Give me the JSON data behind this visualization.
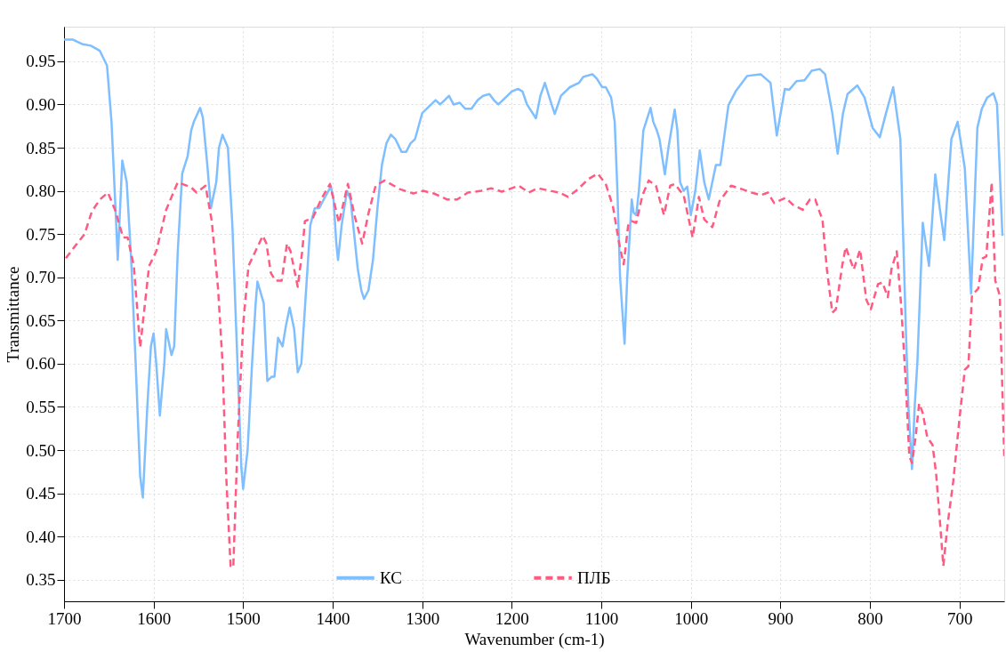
{
  "chart_data": {
    "type": "line",
    "xlabel": "Wavenumber (cm-1)",
    "ylabel": "Transmittance",
    "xlim": [
      1700,
      650
    ],
    "xticks": [
      1700,
      1600,
      1500,
      1400,
      1300,
      1200,
      1100,
      1000,
      900,
      800,
      700
    ],
    "ylim": [
      0.325,
      0.99
    ],
    "yticks": [
      0.35,
      {
        "value": 0.4,
        "label": "0.40"
      },
      0.45,
      {
        "value": 0.5,
        "label": "0.50"
      },
      0.55,
      {
        "value": 0.6,
        "label": "0.60"
      },
      0.65,
      {
        "value": 0.7,
        "label": "0.70"
      },
      0.75,
      {
        "value": 0.8,
        "label": "0.80"
      },
      0.85,
      {
        "value": 0.9,
        "label": "0.90"
      },
      0.95
    ],
    "grid": true,
    "legend": "bottom",
    "marker": "none",
    "series": [
      {
        "name": "КС",
        "color": "#7fbfff",
        "line_style": "solid",
        "x": [
          1700,
          1690,
          1680,
          1670,
          1660,
          1652,
          1647,
          1643,
          1640,
          1635,
          1630,
          1625,
          1620,
          1615,
          1612,
          1607,
          1603,
          1600,
          1597,
          1593,
          1588,
          1586,
          1580,
          1577,
          1573,
          1568,
          1562,
          1558,
          1555,
          1548,
          1545,
          1540,
          1536,
          1530,
          1527,
          1523,
          1517,
          1512,
          1507,
          1502,
          1500,
          1495,
          1490,
          1486,
          1484,
          1477,
          1473,
          1468,
          1465,
          1461,
          1456,
          1452,
          1448,
          1443,
          1439,
          1435,
          1430,
          1425,
          1420,
          1415,
          1410,
          1402,
          1399,
          1396,
          1394,
          1390,
          1384,
          1380,
          1376,
          1372,
          1368,
          1365,
          1360,
          1355,
          1350,
          1345,
          1340,
          1335,
          1330,
          1323,
          1318,
          1313,
          1308,
          1304,
          1300,
          1290,
          1285,
          1280,
          1275,
          1270,
          1265,
          1258,
          1252,
          1245,
          1238,
          1232,
          1225,
          1220,
          1215,
          1210,
          1200,
          1193,
          1188,
          1183,
          1173,
          1168,
          1163,
          1157,
          1152,
          1145,
          1135,
          1125,
          1120,
          1110,
          1105,
          1099,
          1095,
          1089,
          1085,
          1082,
          1079,
          1074,
          1071,
          1066,
          1064,
          1061,
          1058,
          1053,
          1045,
          1042,
          1038,
          1035,
          1029,
          1025,
          1018,
          1015,
          1012,
          1008,
          1004,
          1000,
          995,
          990,
          985,
          980,
          972,
          967,
          958,
          950,
          937,
          922,
          911,
          904,
          895,
          890,
          882,
          873,
          865,
          856,
          850,
          842,
          836,
          830,
          825,
          814,
          806,
          797,
          789,
          782,
          774,
          766,
          760,
          757,
          753,
          750,
          747,
          741,
          734,
          727,
          722,
          717,
          709,
          702,
          694,
          687,
          680,
          675,
          669,
          662,
          658,
          652
        ],
        "values": [
          0.975,
          0.975,
          0.97,
          0.968,
          0.962,
          0.945,
          0.88,
          0.79,
          0.72,
          0.835,
          0.81,
          0.72,
          0.6,
          0.47,
          0.445,
          0.55,
          0.62,
          0.635,
          0.6,
          0.54,
          0.6,
          0.64,
          0.61,
          0.62,
          0.73,
          0.82,
          0.84,
          0.87,
          0.88,
          0.896,
          0.885,
          0.83,
          0.78,
          0.81,
          0.85,
          0.865,
          0.85,
          0.76,
          0.62,
          0.48,
          0.455,
          0.5,
          0.6,
          0.67,
          0.695,
          0.67,
          0.58,
          0.585,
          0.585,
          0.63,
          0.62,
          0.645,
          0.665,
          0.64,
          0.59,
          0.6,
          0.68,
          0.76,
          0.78,
          0.78,
          0.79,
          0.805,
          0.79,
          0.74,
          0.72,
          0.76,
          0.8,
          0.79,
          0.75,
          0.71,
          0.685,
          0.675,
          0.685,
          0.72,
          0.78,
          0.83,
          0.855,
          0.865,
          0.86,
          0.845,
          0.845,
          0.855,
          0.86,
          0.875,
          0.89,
          0.9,
          0.905,
          0.9,
          0.905,
          0.91,
          0.9,
          0.902,
          0.895,
          0.895,
          0.905,
          0.91,
          0.912,
          0.905,
          0.9,
          0.905,
          0.915,
          0.918,
          0.915,
          0.9,
          0.884,
          0.91,
          0.925,
          0.905,
          0.889,
          0.91,
          0.92,
          0.925,
          0.932,
          0.935,
          0.93,
          0.92,
          0.92,
          0.908,
          0.88,
          0.8,
          0.7,
          0.623,
          0.7,
          0.79,
          0.775,
          0.772,
          0.8,
          0.87,
          0.896,
          0.88,
          0.87,
          0.86,
          0.819,
          0.85,
          0.894,
          0.87,
          0.81,
          0.8,
          0.805,
          0.772,
          0.8,
          0.847,
          0.81,
          0.79,
          0.83,
          0.83,
          0.899,
          0.915,
          0.933,
          0.935,
          0.925,
          0.864,
          0.918,
          0.917,
          0.927,
          0.928,
          0.939,
          0.941,
          0.935,
          0.89,
          0.843,
          0.89,
          0.912,
          0.922,
          0.908,
          0.873,
          0.862,
          0.89,
          0.92,
          0.86,
          0.645,
          0.55,
          0.478,
          0.55,
          0.601,
          0.763,
          0.713,
          0.819,
          0.78,
          0.743,
          0.86,
          0.88,
          0.826,
          0.681,
          0.873,
          0.895,
          0.908,
          0.913,
          0.9,
          0.748
        ]
      },
      {
        "name": "ПЛБ",
        "color": "#ff5a82",
        "line_style": "dashed",
        "x": [
          1698,
          1687,
          1677,
          1669,
          1660,
          1651,
          1643,
          1634,
          1629,
          1622,
          1615,
          1605,
          1597,
          1586,
          1573,
          1558,
          1552,
          1542,
          1535,
          1528,
          1523,
          1519,
          1514,
          1511,
          1506,
          1500,
          1494,
          1484,
          1478,
          1474,
          1469,
          1464,
          1457,
          1451,
          1447,
          1439,
          1434,
          1431,
          1422,
          1413,
          1403,
          1393,
          1383,
          1375,
          1367,
          1360,
          1352,
          1342,
          1325,
          1310,
          1299,
          1287,
          1272,
          1261,
          1249,
          1234,
          1223,
          1211,
          1192,
          1181,
          1171,
          1147,
          1137,
          1126,
          1114,
          1104,
          1095,
          1087,
          1080,
          1075,
          1070,
          1066,
          1061,
          1054,
          1047,
          1039,
          1030,
          1023,
          1018,
          1008,
          998,
          991,
          985,
          976,
          968,
          955,
          943,
          932,
          922,
          914,
          907,
          894,
          886,
          875,
          867,
          861,
          856,
          853,
          848,
          842,
          838,
          831,
          827,
          818,
          811,
          804,
          799,
          791,
          786,
          780,
          776,
          770,
          765,
          760,
          756,
          753,
          749,
          745,
          741,
          736,
          730,
          726,
          721,
          718,
          713,
          707,
          700,
          694,
          690,
          686,
          679,
          674,
          670,
          664,
          660,
          655,
          650
        ],
        "values": [
          0.722,
          0.737,
          0.75,
          0.776,
          0.79,
          0.798,
          0.778,
          0.746,
          0.746,
          0.713,
          0.619,
          0.713,
          0.73,
          0.778,
          0.81,
          0.804,
          0.798,
          0.806,
          0.765,
          0.687,
          0.601,
          0.472,
          0.366,
          0.364,
          0.515,
          0.645,
          0.713,
          0.735,
          0.748,
          0.739,
          0.705,
          0.696,
          0.696,
          0.739,
          0.73,
          0.689,
          0.73,
          0.765,
          0.769,
          0.79,
          0.808,
          0.763,
          0.808,
          0.769,
          0.739,
          0.774,
          0.806,
          0.812,
          0.802,
          0.797,
          0.8,
          0.797,
          0.79,
          0.79,
          0.798,
          0.8,
          0.803,
          0.799,
          0.806,
          0.798,
          0.803,
          0.798,
          0.793,
          0.802,
          0.814,
          0.82,
          0.808,
          0.782,
          0.739,
          0.715,
          0.76,
          0.765,
          0.763,
          0.795,
          0.812,
          0.806,
          0.772,
          0.806,
          0.808,
          0.795,
          0.746,
          0.793,
          0.767,
          0.758,
          0.788,
          0.806,
          0.802,
          0.798,
          0.795,
          0.798,
          0.786,
          0.792,
          0.784,
          0.778,
          0.79,
          0.79,
          0.775,
          0.767,
          0.709,
          0.659,
          0.663,
          0.713,
          0.735,
          0.709,
          0.732,
          0.674,
          0.663,
          0.692,
          0.694,
          0.677,
          0.709,
          0.73,
          0.666,
          0.579,
          0.493,
          0.485,
          0.515,
          0.554,
          0.543,
          0.515,
          0.506,
          0.472,
          0.407,
          0.366,
          0.416,
          0.463,
          0.536,
          0.593,
          0.597,
          0.679,
          0.687,
          0.722,
          0.724,
          0.81,
          0.696,
          0.679,
          0.493
        ]
      }
    ]
  }
}
